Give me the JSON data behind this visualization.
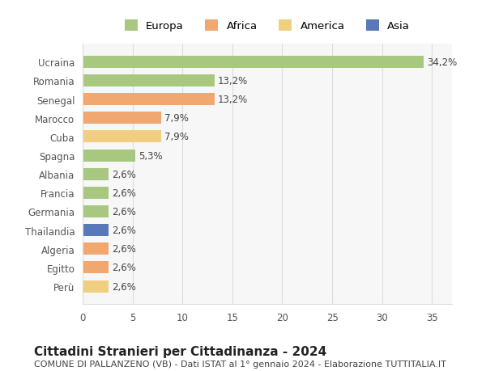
{
  "categories": [
    "Perù",
    "Egitto",
    "Algeria",
    "Thailandia",
    "Germania",
    "Francia",
    "Albania",
    "Spagna",
    "Cuba",
    "Marocco",
    "Senegal",
    "Romania",
    "Ucraina"
  ],
  "values": [
    2.6,
    2.6,
    2.6,
    2.6,
    2.6,
    2.6,
    2.6,
    5.3,
    7.9,
    7.9,
    13.2,
    13.2,
    34.2
  ],
  "bar_colors": [
    "#f0d080",
    "#f0a870",
    "#f0a870",
    "#5878b8",
    "#a8c880",
    "#a8c880",
    "#a8c880",
    "#a8c880",
    "#f0d080",
    "#f0a870",
    "#f0a870",
    "#a8c880",
    "#a8c880"
  ],
  "bar_labels": [
    "2,6%",
    "2,6%",
    "2,6%",
    "2,6%",
    "2,6%",
    "2,6%",
    "2,6%",
    "5,3%",
    "7,9%",
    "7,9%",
    "13,2%",
    "13,2%",
    "34,2%"
  ],
  "legend_labels": [
    "Europa",
    "Africa",
    "America",
    "Asia"
  ],
  "legend_colors": [
    "#a8c880",
    "#f0a870",
    "#f0d080",
    "#5878b8"
  ],
  "title": "Cittadini Stranieri per Cittadinanza - 2024",
  "subtitle": "COMUNE DI PALLANZENO (VB) - Dati ISTAT al 1° gennaio 2024 - Elaborazione TUTTITALIA.IT",
  "xlim": [
    0,
    37
  ],
  "xticks": [
    0,
    5,
    10,
    15,
    20,
    25,
    30,
    35
  ],
  "background_color": "#ffffff",
  "grid_color": "#dddddd",
  "title_fontsize": 11,
  "subtitle_fontsize": 8,
  "label_fontsize": 8.5,
  "tick_fontsize": 8.5
}
